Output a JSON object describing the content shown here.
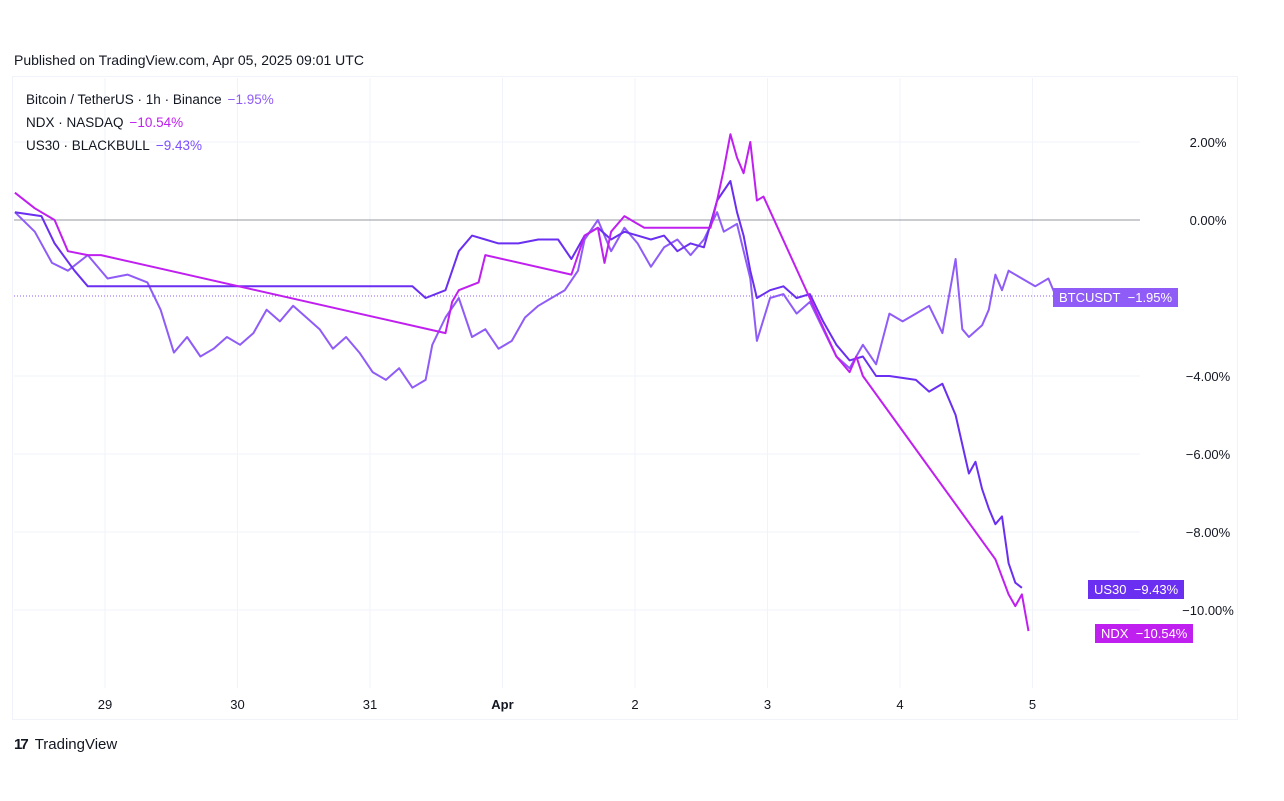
{
  "header": {
    "published": "Published on TradingView.com, Apr 05, 2025 09:01 UTC"
  },
  "legend": [
    {
      "label": "Bitcoin / TetherUS · 1h · Binance",
      "change": "−1.95%",
      "color": "#8f5cf7"
    },
    {
      "label": "NDX · NASDAQ",
      "change": "−10.54%",
      "color": "#c020ef"
    },
    {
      "label": "US30 · BLACKBULL",
      "change": "−9.43%",
      "color": "#7c4dff"
    }
  ],
  "tags": {
    "btc": {
      "name": "BTCUSDT",
      "value": "−1.95%",
      "color": "#8f5cf7"
    },
    "us30": {
      "name": "US30",
      "value": "−9.43%",
      "color": "#6a2ff0"
    },
    "ndx": {
      "name": "NDX",
      "value": "−10.54%",
      "color": "#c020ef"
    }
  },
  "footer": {
    "brand": "TradingView",
    "logo_text": "17"
  },
  "chart_data": {
    "type": "line",
    "x_ticks": [
      "29",
      "30",
      "31",
      "Apr",
      "2",
      "3",
      "4",
      "5"
    ],
    "y_ticks": [
      "2.00%",
      "0.00%",
      "−4.00%",
      "−6.00%",
      "−8.00%",
      "−10.00%"
    ],
    "ylim": [
      -11.3,
      3.8
    ],
    "xlim": [
      0,
      7.6
    ],
    "grid": true,
    "series": [
      {
        "name": "BTCUSDT",
        "color": "#8f5cf7",
        "points": [
          [
            0,
            0.2
          ],
          [
            0.15,
            -0.3
          ],
          [
            0.28,
            -1.1
          ],
          [
            0.4,
            -1.3
          ],
          [
            0.55,
            -0.9
          ],
          [
            0.7,
            -1.5
          ],
          [
            0.85,
            -1.4
          ],
          [
            1.0,
            -1.6
          ],
          [
            1.1,
            -2.3
          ],
          [
            1.2,
            -3.4
          ],
          [
            1.3,
            -3.0
          ],
          [
            1.4,
            -3.5
          ],
          [
            1.5,
            -3.3
          ],
          [
            1.6,
            -3.0
          ],
          [
            1.7,
            -3.2
          ],
          [
            1.8,
            -2.9
          ],
          [
            1.9,
            -2.3
          ],
          [
            2.0,
            -2.6
          ],
          [
            2.1,
            -2.2
          ],
          [
            2.2,
            -2.5
          ],
          [
            2.3,
            -2.8
          ],
          [
            2.4,
            -3.3
          ],
          [
            2.5,
            -3.0
          ],
          [
            2.6,
            -3.4
          ],
          [
            2.7,
            -3.9
          ],
          [
            2.8,
            -4.1
          ],
          [
            2.9,
            -3.8
          ],
          [
            3.0,
            -4.3
          ],
          [
            3.1,
            -4.1
          ],
          [
            3.15,
            -3.2
          ],
          [
            3.25,
            -2.5
          ],
          [
            3.35,
            -2.0
          ],
          [
            3.45,
            -3.0
          ],
          [
            3.55,
            -2.8
          ],
          [
            3.65,
            -3.3
          ],
          [
            3.75,
            -3.1
          ],
          [
            3.85,
            -2.5
          ],
          [
            3.95,
            -2.2
          ],
          [
            4.05,
            -2.0
          ],
          [
            4.15,
            -1.8
          ],
          [
            4.25,
            -1.3
          ],
          [
            4.3,
            -0.5
          ],
          [
            4.4,
            0.0
          ],
          [
            4.5,
            -0.8
          ],
          [
            4.6,
            -0.2
          ],
          [
            4.7,
            -0.6
          ],
          [
            4.8,
            -1.2
          ],
          [
            4.9,
            -0.7
          ],
          [
            5.0,
            -0.5
          ],
          [
            5.1,
            -0.9
          ],
          [
            5.2,
            -0.5
          ],
          [
            5.3,
            0.2
          ],
          [
            5.35,
            -0.3
          ],
          [
            5.45,
            -0.1
          ],
          [
            5.55,
            -1.5
          ],
          [
            5.6,
            -3.1
          ],
          [
            5.7,
            -2.0
          ],
          [
            5.8,
            -1.9
          ],
          [
            5.9,
            -2.4
          ],
          [
            6.0,
            -2.1
          ],
          [
            6.1,
            -2.8
          ],
          [
            6.2,
            -3.5
          ],
          [
            6.3,
            -3.8
          ],
          [
            6.4,
            -3.2
          ],
          [
            6.5,
            -3.7
          ],
          [
            6.6,
            -2.4
          ],
          [
            6.7,
            -2.6
          ],
          [
            6.8,
            -2.4
          ],
          [
            6.9,
            -2.2
          ],
          [
            7.0,
            -2.9
          ],
          [
            7.1,
            -1.0
          ],
          [
            7.15,
            -2.8
          ],
          [
            7.2,
            -3.0
          ],
          [
            7.3,
            -2.7
          ],
          [
            7.35,
            -2.3
          ],
          [
            7.4,
            -1.4
          ],
          [
            7.45,
            -1.8
          ],
          [
            7.5,
            -1.3
          ],
          [
            7.6,
            -1.5
          ],
          [
            7.7,
            -1.7
          ],
          [
            7.8,
            -1.5
          ],
          [
            7.85,
            -1.9
          ]
        ]
      },
      {
        "name": "US30",
        "color": "#6a2ff0",
        "points": [
          [
            0,
            0.2
          ],
          [
            0.2,
            0.1
          ],
          [
            0.3,
            -0.6
          ],
          [
            0.45,
            -1.3
          ],
          [
            0.55,
            -1.7
          ],
          [
            1.0,
            -1.7
          ],
          [
            2.0,
            -1.7
          ],
          [
            2.8,
            -1.7
          ],
          [
            3.0,
            -1.7
          ],
          [
            3.1,
            -2.0
          ],
          [
            3.25,
            -1.8
          ],
          [
            3.35,
            -0.8
          ],
          [
            3.45,
            -0.4
          ],
          [
            3.55,
            -0.5
          ],
          [
            3.65,
            -0.6
          ],
          [
            3.8,
            -0.6
          ],
          [
            3.95,
            -0.5
          ],
          [
            4.1,
            -0.5
          ],
          [
            4.2,
            -1.0
          ],
          [
            4.3,
            -0.4
          ],
          [
            4.4,
            -0.2
          ],
          [
            4.5,
            -0.5
          ],
          [
            4.6,
            -0.3
          ],
          [
            4.7,
            -0.4
          ],
          [
            4.8,
            -0.5
          ],
          [
            4.9,
            -0.4
          ],
          [
            5.0,
            -0.8
          ],
          [
            5.1,
            -0.6
          ],
          [
            5.2,
            -0.7
          ],
          [
            5.3,
            0.5
          ],
          [
            5.4,
            1.0
          ],
          [
            5.45,
            0.2
          ],
          [
            5.5,
            -0.4
          ],
          [
            5.55,
            -1.3
          ],
          [
            5.6,
            -2.0
          ],
          [
            5.7,
            -1.8
          ],
          [
            5.8,
            -1.7
          ],
          [
            5.9,
            -2.0
          ],
          [
            6.0,
            -1.9
          ],
          [
            6.1,
            -2.6
          ],
          [
            6.2,
            -3.2
          ],
          [
            6.3,
            -3.6
          ],
          [
            6.4,
            -3.5
          ],
          [
            6.5,
            -4.0
          ],
          [
            6.6,
            -4.0
          ],
          [
            6.8,
            -4.1
          ],
          [
            6.9,
            -4.4
          ],
          [
            7.0,
            -4.2
          ],
          [
            7.1,
            -5.0
          ],
          [
            7.2,
            -6.5
          ],
          [
            7.25,
            -6.2
          ],
          [
            7.3,
            -6.9
          ],
          [
            7.35,
            -7.4
          ],
          [
            7.4,
            -7.8
          ],
          [
            7.45,
            -7.6
          ],
          [
            7.5,
            -8.8
          ],
          [
            7.55,
            -9.3
          ],
          [
            7.6,
            -9.43
          ]
        ]
      },
      {
        "name": "NDX",
        "color": "#c020ef",
        "points": [
          [
            0,
            0.7
          ],
          [
            0.15,
            0.3
          ],
          [
            0.3,
            0.0
          ],
          [
            0.4,
            -0.8
          ],
          [
            0.55,
            -0.9
          ],
          [
            0.65,
            -0.9
          ],
          [
            3.25,
            -2.9
          ],
          [
            3.3,
            -2.1
          ],
          [
            3.35,
            -1.8
          ],
          [
            3.5,
            -1.6
          ],
          [
            3.55,
            -0.9
          ],
          [
            4.2,
            -1.4
          ],
          [
            4.25,
            -0.9
          ],
          [
            4.3,
            -0.4
          ],
          [
            4.4,
            -0.2
          ],
          [
            4.45,
            -1.1
          ],
          [
            4.5,
            -0.3
          ],
          [
            4.6,
            0.1
          ],
          [
            4.7,
            -0.1
          ],
          [
            4.75,
            -0.2
          ],
          [
            5.25,
            -0.2
          ],
          [
            5.3,
            0.5
          ],
          [
            5.35,
            1.3
          ],
          [
            5.4,
            2.2
          ],
          [
            5.45,
            1.6
          ],
          [
            5.5,
            1.2
          ],
          [
            5.55,
            2.0
          ],
          [
            5.6,
            0.5
          ],
          [
            5.65,
            0.6
          ],
          [
            6.2,
            -3.5
          ],
          [
            6.3,
            -3.9
          ],
          [
            6.35,
            -3.5
          ],
          [
            6.4,
            -4.0
          ],
          [
            7.4,
            -8.7
          ],
          [
            7.5,
            -9.6
          ],
          [
            7.55,
            -9.9
          ],
          [
            7.6,
            -9.6
          ],
          [
            7.65,
            -10.54
          ]
        ]
      }
    ],
    "hline_zero": 0.0,
    "hline_btc": -1.95
  }
}
